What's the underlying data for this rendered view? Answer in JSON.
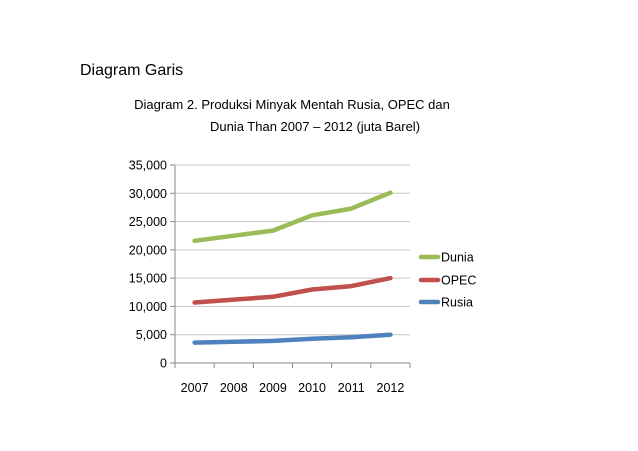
{
  "heading": "Diagram Garis",
  "chart_data": {
    "type": "line",
    "title_lines": [
      "Diagram 2. Produksi Minyak Mentah Rusia, OPEC dan",
      "Dunia Than 2007 – 2012 (juta Barel)"
    ],
    "categories": [
      "2007",
      "2008",
      "2009",
      "2010",
      "2011",
      "2012"
    ],
    "series": [
      {
        "name": "Dunia",
        "color": "#9BBB59",
        "values": [
          21600,
          22500,
          23400,
          26100,
          27300,
          30100
        ]
      },
      {
        "name": "OPEC",
        "color": "#C0504D",
        "values": [
          10700,
          11200,
          11700,
          13000,
          13600,
          15000
        ]
      },
      {
        "name": "Rusia",
        "color": "#4F81BD",
        "values": [
          3600,
          3750,
          3900,
          4300,
          4550,
          5000
        ]
      }
    ],
    "y_ticks": [
      "0",
      "5,000",
      "10,000",
      "15,000",
      "20,000",
      "25,000",
      "30,000",
      "35,000"
    ],
    "ylim": [
      0,
      35000
    ],
    "grid": true,
    "legend": "right"
  }
}
